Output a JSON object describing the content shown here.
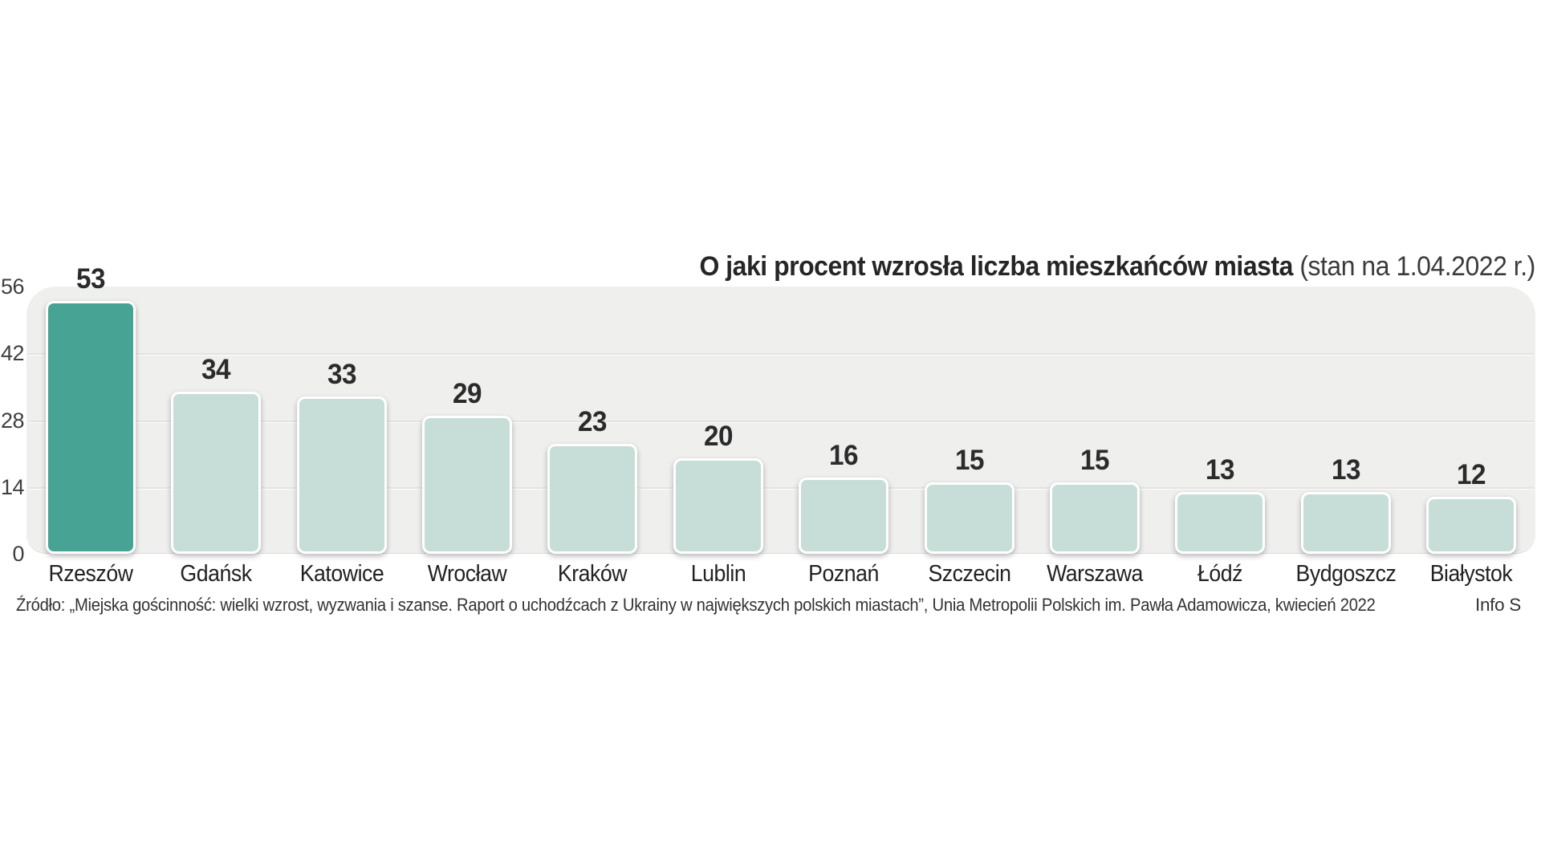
{
  "chart_data": {
    "type": "bar",
    "title": "O jaki procent wzrosła liczba mieszkańców miasta",
    "title_note": " (stan na 1.04.2022 r.)",
    "categories": [
      "Rzeszów",
      "Gdańsk",
      "Katowice",
      "Wrocław",
      "Kraków",
      "Lublin",
      "Poznań",
      "Szczecin",
      "Warszawa",
      "Łódź",
      "Bydgoszcz",
      "Białystok"
    ],
    "values": [
      53,
      34,
      33,
      29,
      23,
      20,
      16,
      15,
      15,
      13,
      13,
      12
    ],
    "y_ticks": [
      56,
      42,
      28,
      14,
      0
    ],
    "ylim": [
      0,
      56
    ],
    "grid": true,
    "legend": false,
    "highlight_index": 0,
    "colors": {
      "bar_highlight": "#47a394",
      "bar_normal": "#c7ded8",
      "bar_border": "#ffffff",
      "plot_background": "#efefee",
      "gridline": "#e3e3e2",
      "value_label": "#2b2b2b",
      "tick_label": "#3f3f3f"
    },
    "source": "Źródło: „Miejska gościnność: wielki wzrost, wyzwania i szanse. Raport o uchodźcach z Ukrainy w największych polskich miastach”, Unia Metropolii Polskich im. Pawła Adamowicza, kwiecień 2022",
    "credit": "Info S"
  }
}
